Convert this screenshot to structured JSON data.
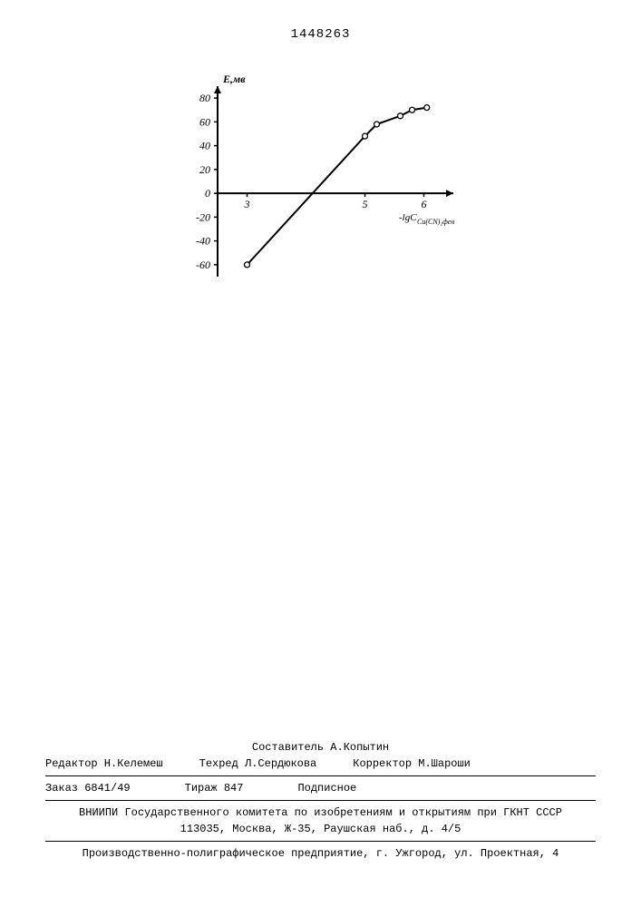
{
  "page_number": "1448263",
  "chart": {
    "type": "line",
    "y_label": "Е,мв",
    "x_label": "-lgC",
    "x_label_sub": "Cu(CN)₂фен",
    "y_ticks": [
      -60,
      -40,
      -20,
      0,
      20,
      40,
      60,
      80
    ],
    "x_ticks": [
      3,
      5,
      6
    ],
    "points": [
      {
        "x": 3.0,
        "y": -60
      },
      {
        "x": 5.0,
        "y": 48
      },
      {
        "x": 5.2,
        "y": 58
      },
      {
        "x": 5.6,
        "y": 65
      },
      {
        "x": 5.8,
        "y": 70
      },
      {
        "x": 6.05,
        "y": 72
      }
    ],
    "line_color": "#000000",
    "marker_stroke": "#000000",
    "marker_fill": "#ffffff",
    "marker_radius": 3,
    "line_width": 2,
    "axis_color": "#000000",
    "background_color": "#ffffff",
    "font_size": 12,
    "xlim": [
      2.5,
      6.5
    ],
    "ylim": [
      -70,
      90
    ]
  },
  "footer": {
    "compiler": "Составитель А.Копытин",
    "editor": "Редактор Н.Келемеш",
    "techred": "Техред Л.Сердюкова",
    "corrector": "Корректор М.Шароши",
    "order": "Заказ 6841/49",
    "tirage": "Тираж 847",
    "subscription": "Подписное",
    "org": "ВНИИПИ Государственного комитета по изобретениям и открытиям при ГКНТ СССР",
    "address": "113035, Москва, Ж-35, Раушская наб., д. 4/5",
    "printer": "Производственно-полиграфическое предприятие, г. Ужгород, ул. Проектная, 4"
  }
}
